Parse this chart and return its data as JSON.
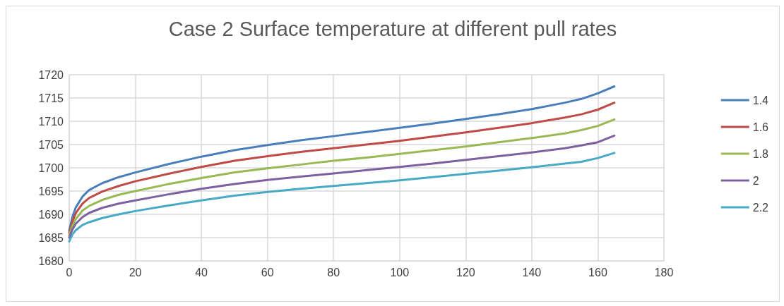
{
  "chart_data": {
    "type": "line",
    "title": "Case 2 Surface temperature at different pull rates",
    "x": [
      0,
      1,
      2,
      4,
      6,
      10,
      15,
      20,
      30,
      40,
      50,
      60,
      70,
      80,
      90,
      100,
      110,
      120,
      130,
      140,
      150,
      155,
      160,
      165
    ],
    "series": [
      {
        "name": "1.4",
        "color": "#4a7ebb",
        "values": [
          1686.5,
          1689.5,
          1691.5,
          1693.8,
          1695.2,
          1696.7,
          1698,
          1699,
          1700.8,
          1702.4,
          1703.8,
          1704.9,
          1705.9,
          1706.8,
          1707.7,
          1708.6,
          1709.5,
          1710.5,
          1711.5,
          1712.6,
          1714,
          1714.8,
          1716,
          1717.5
        ]
      },
      {
        "name": "1.6",
        "color": "#be4b48",
        "values": [
          1686,
          1688.5,
          1690.3,
          1692.3,
          1693.5,
          1694.9,
          1696.1,
          1697.1,
          1698.7,
          1700.2,
          1701.5,
          1702.5,
          1703.4,
          1704.2,
          1705,
          1705.8,
          1706.7,
          1707.6,
          1708.6,
          1709.6,
          1710.8,
          1711.5,
          1712.5,
          1714
        ]
      },
      {
        "name": "1.8",
        "color": "#98b954",
        "values": [
          1685.5,
          1687.6,
          1689,
          1690.8,
          1691.8,
          1693.1,
          1694.2,
          1695,
          1696.5,
          1697.8,
          1699,
          1699.9,
          1700.7,
          1701.5,
          1702.2,
          1703,
          1703.8,
          1704.6,
          1705.5,
          1706.4,
          1707.4,
          1708.1,
          1709,
          1710.4
        ]
      },
      {
        "name": "2",
        "color": "#7d60a0",
        "values": [
          1685,
          1686.8,
          1688,
          1689.4,
          1690.3,
          1691.4,
          1692.3,
          1693,
          1694.3,
          1695.5,
          1696.5,
          1697.4,
          1698.1,
          1698.8,
          1699.5,
          1700.2,
          1700.9,
          1701.7,
          1702.5,
          1703.3,
          1704.2,
          1704.8,
          1705.5,
          1706.9
        ]
      },
      {
        "name": "2.2",
        "color": "#46aac5",
        "values": [
          1684.2,
          1685.7,
          1686.6,
          1687.7,
          1688.3,
          1689.2,
          1690,
          1690.7,
          1691.9,
          1693,
          1694,
          1694.8,
          1695.5,
          1696.1,
          1696.7,
          1697.3,
          1698,
          1698.7,
          1699.4,
          1700.1,
          1700.9,
          1701.3,
          1702.1,
          1703.2
        ]
      }
    ],
    "xlim": [
      0,
      180
    ],
    "xticks": [
      0,
      20,
      40,
      60,
      80,
      100,
      120,
      140,
      160,
      180
    ],
    "ylim": [
      1680,
      1720
    ],
    "yticks": [
      1680,
      1685,
      1690,
      1695,
      1700,
      1705,
      1710,
      1715,
      1720
    ],
    "grid": true,
    "legend": "right",
    "marker": "none",
    "line_style": "solid"
  }
}
